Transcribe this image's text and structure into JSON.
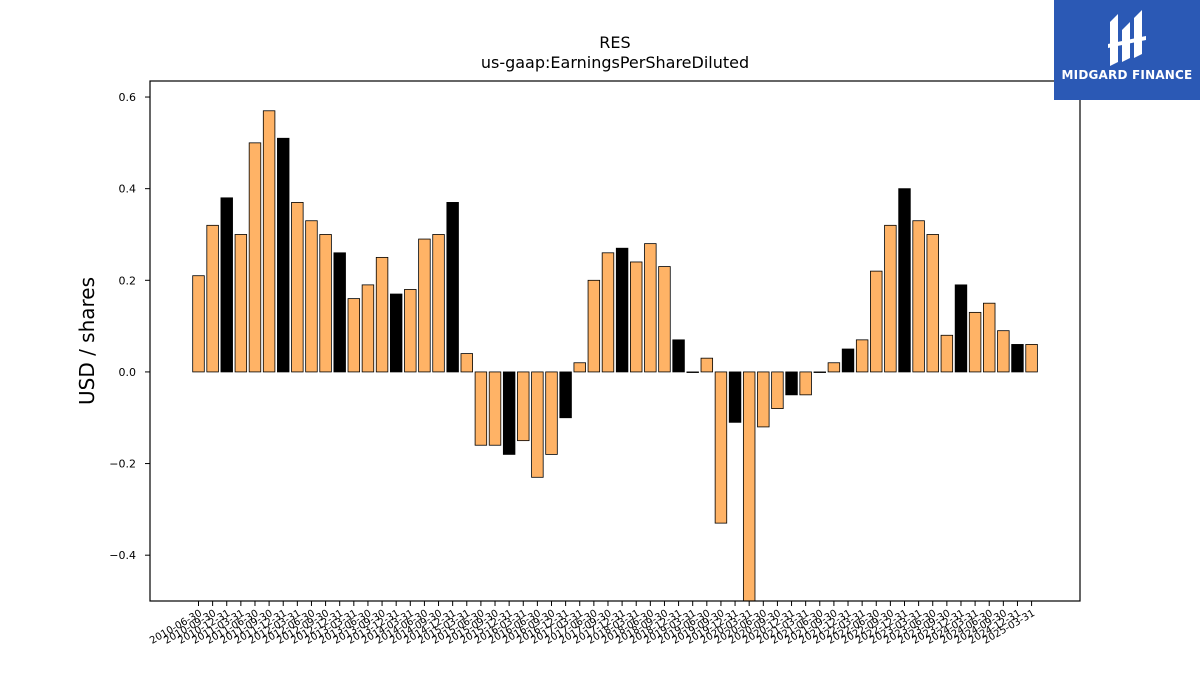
{
  "brand": {
    "name": "MIDGARD FINANCE",
    "background": "#2b59b5"
  },
  "chart_data": {
    "type": "bar",
    "title": "RES",
    "subtitle": "us-gaap:EarningsPerShareDiluted",
    "xlabel": "",
    "ylabel": "USD / shares",
    "ylim": [
      -0.5,
      0.635
    ],
    "yticks": [
      -0.4,
      -0.2,
      0.0,
      0.2,
      0.4,
      0.6
    ],
    "ytick_labels": [
      "−0.4",
      "−0.2",
      "0.0",
      "0.2",
      "0.4",
      "0.6"
    ],
    "colors": {
      "quarterly": "#ffb366",
      "annual": "#000000",
      "edge": "#000000"
    },
    "categories": [
      "2010-06-30",
      "2010-09-30",
      "2010-12-31",
      "2011-03-31",
      "2011-06-30",
      "2011-09-30",
      "2011-12-31",
      "2012-03-31",
      "2012-06-30",
      "2012-09-30",
      "2012-12-31",
      "2013-03-31",
      "2013-06-30",
      "2013-09-30",
      "2013-12-31",
      "2014-03-31",
      "2014-06-30",
      "2014-09-30",
      "2014-12-31",
      "2015-03-31",
      "2015-06-30",
      "2015-09-30",
      "2015-12-31",
      "2016-03-31",
      "2016-06-30",
      "2016-09-30",
      "2016-12-31",
      "2017-03-31",
      "2017-06-30",
      "2017-09-30",
      "2017-12-31",
      "2018-03-31",
      "2018-06-30",
      "2018-09-30",
      "2018-12-31",
      "2019-03-31",
      "2019-06-30",
      "2019-09-30",
      "2019-12-31",
      "2020-03-31",
      "2020-06-30",
      "2020-09-30",
      "2020-12-31",
      "2021-03-31",
      "2021-06-30",
      "2021-09-30",
      "2021-12-31",
      "2022-03-31",
      "2022-06-30",
      "2022-09-30",
      "2022-12-31",
      "2023-03-31",
      "2023-06-30",
      "2023-09-30",
      "2023-12-31",
      "2024-03-31",
      "2024-06-30",
      "2024-09-30",
      "2024-12-31",
      "2025-03-31"
    ],
    "values": [
      0.21,
      0.32,
      0.38,
      0.3,
      0.5,
      0.57,
      0.51,
      0.37,
      0.33,
      0.3,
      0.26,
      0.16,
      0.19,
      0.25,
      0.17,
      0.18,
      0.29,
      0.3,
      0.37,
      0.04,
      -0.16,
      -0.16,
      -0.18,
      -0.15,
      -0.23,
      -0.18,
      -0.1,
      0.02,
      0.2,
      0.26,
      0.27,
      0.24,
      0.28,
      0.23,
      0.07,
      0.0,
      0.03,
      -0.33,
      -0.11,
      -0.5,
      -0.12,
      -0.08,
      -0.05,
      -0.05,
      0.0,
      0.02,
      0.05,
      0.07,
      0.22,
      0.32,
      0.4,
      0.33,
      0.3,
      0.08,
      0.19,
      0.13,
      0.15,
      0.09,
      0.06,
      0.06
    ],
    "annual": [
      false,
      false,
      true,
      false,
      false,
      false,
      true,
      false,
      false,
      false,
      true,
      false,
      false,
      false,
      true,
      false,
      false,
      false,
      true,
      false,
      false,
      false,
      true,
      false,
      false,
      false,
      true,
      false,
      false,
      false,
      true,
      false,
      false,
      false,
      true,
      false,
      false,
      false,
      true,
      false,
      false,
      false,
      true,
      false,
      false,
      false,
      true,
      false,
      false,
      false,
      true,
      false,
      false,
      false,
      true,
      false,
      false,
      false,
      true,
      false
    ]
  }
}
